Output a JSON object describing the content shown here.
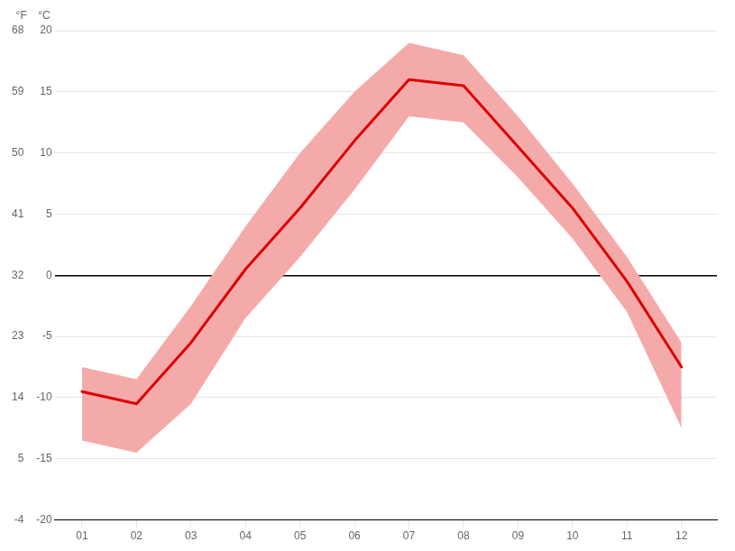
{
  "chart_data": {
    "type": "line",
    "x": [
      1,
      2,
      3,
      4,
      5,
      6,
      7,
      8,
      9,
      10,
      11,
      12
    ],
    "xlim": [
      0.5,
      12.65
    ],
    "xticks": [
      {
        "value": 1,
        "label": "01"
      },
      {
        "value": 2,
        "label": "02"
      },
      {
        "value": 3,
        "label": "03"
      },
      {
        "value": 4,
        "label": "04"
      },
      {
        "value": 5,
        "label": "05"
      },
      {
        "value": 6,
        "label": "06"
      },
      {
        "value": 7,
        "label": "07"
      },
      {
        "value": 8,
        "label": "08"
      },
      {
        "value": 9,
        "label": "09"
      },
      {
        "value": 10,
        "label": "10"
      },
      {
        "value": 11,
        "label": "11"
      },
      {
        "value": 12,
        "label": "12"
      }
    ],
    "ylim": [
      -20,
      20
    ],
    "yticks": [
      -20,
      -15,
      -10,
      -5,
      0,
      5,
      10,
      15,
      20
    ],
    "ylabel": "°C",
    "y2lim": [
      -4,
      68
    ],
    "y2ticks": [
      -4,
      5,
      14,
      23,
      32,
      41,
      50,
      59,
      68
    ],
    "y2label": "°F",
    "grid": true,
    "series": [
      {
        "type": "band",
        "color": "#f5aaaa",
        "low": [
          -13.5,
          -14.5,
          -10.5,
          -3.5,
          1.5,
          7.0,
          13.0,
          12.5,
          8.0,
          3.0,
          -3.0,
          -12.5
        ],
        "high": [
          -7.5,
          -8.5,
          -2.5,
          4.0,
          10.0,
          15.0,
          19.0,
          18.0,
          13.0,
          7.5,
          1.5,
          -5.5
        ]
      },
      {
        "type": "line",
        "color": "#dd0000",
        "values": [
          -9.5,
          -10.5,
          -5.5,
          0.5,
          5.5,
          11.0,
          16.0,
          15.5,
          10.5,
          5.5,
          -0.5,
          -7.5
        ]
      }
    ]
  }
}
